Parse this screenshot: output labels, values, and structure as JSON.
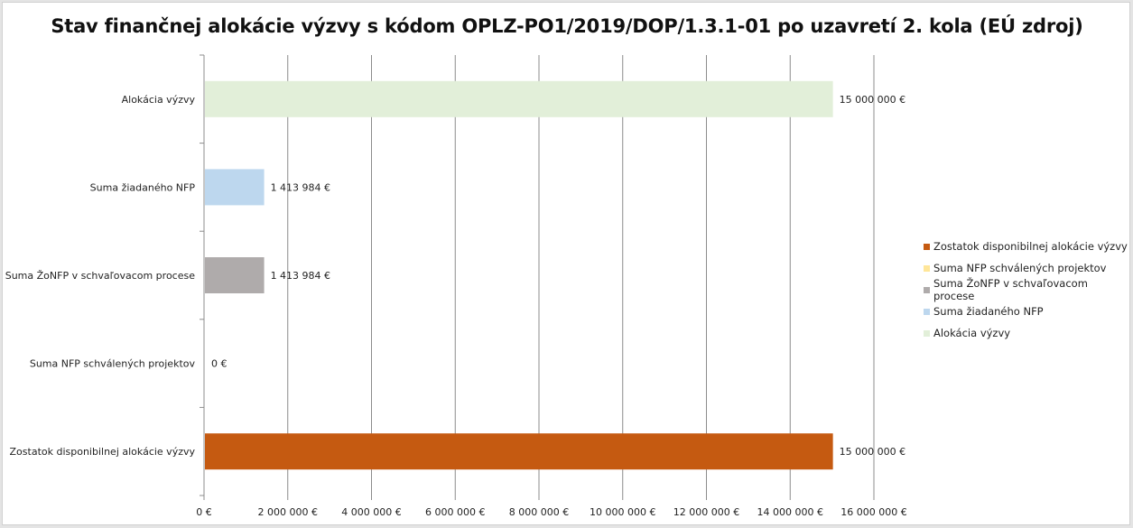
{
  "chart_data": {
    "type": "bar",
    "orientation": "horizontal",
    "title": "Stav finančnej alokácie výzvy s kódom OPLZ-PO1/2019/DOP/1.3.1-01 po uzavretí 2. kola (EÚ zdroj)",
    "categories": [
      "Alokácia výzvy",
      "Suma žiadaného NFP",
      "Suma ŽoNFP v schvaľovacom procese",
      "Suma NFP schválených projektov",
      "Zostatok disponibilnej alokácie výzvy"
    ],
    "values": [
      15000000,
      1413984,
      1413984,
      0,
      15000000
    ],
    "data_labels": [
      "15 000 000 €",
      "1 413 984 €",
      "1 413 984 €",
      "0 €",
      "15 000 000 €"
    ],
    "colors": [
      "#e2efd9",
      "#bdd7ee",
      "#afabab",
      "#ffe699",
      "#c55a11"
    ],
    "xlim": [
      0,
      16000000
    ],
    "xticks": [
      0,
      2000000,
      4000000,
      6000000,
      8000000,
      10000000,
      12000000,
      14000000,
      16000000
    ],
    "xtick_labels": [
      "0 €",
      "2 000 000 €",
      "4 000 000 €",
      "6 000 000 €",
      "8 000 000 €",
      "10 000 000 €",
      "12 000 000 €",
      "14 000 000 €",
      "16 000 000 €"
    ],
    "grid": "vertical major gridlines",
    "legend_position": "right",
    "legend": [
      {
        "label": "Zostatok disponibilnej alokácie výzvy",
        "color": "#c55a11"
      },
      {
        "label": "Suma NFP schválených projektov",
        "color": "#ffe699"
      },
      {
        "label": "Suma ŽoNFP v schvaľovacom procese",
        "color": "#afabab"
      },
      {
        "label": "Suma žiadaného NFP",
        "color": "#bdd7ee"
      },
      {
        "label": "Alokácia výzvy",
        "color": "#e2efd9"
      }
    ]
  }
}
